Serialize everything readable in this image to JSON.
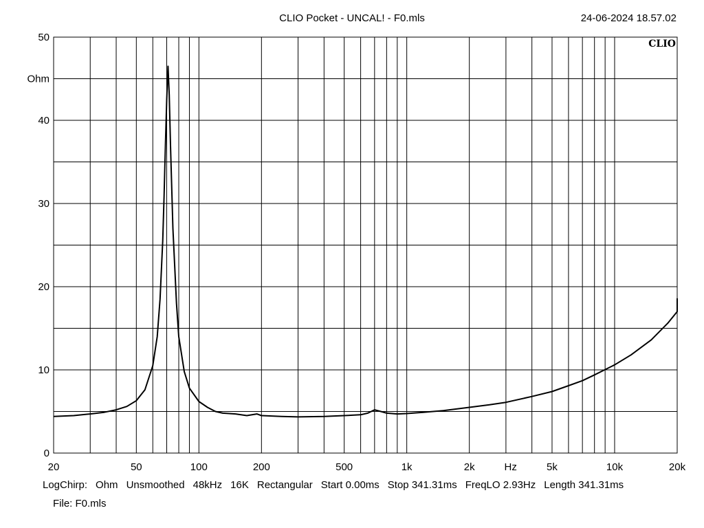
{
  "header": {
    "title": "CLIO Pocket - UNCAL! - F0.mls",
    "timestamp": "24-06-2024 18.57.02"
  },
  "brand": "CLIO",
  "footer": {
    "items": [
      "LogChirp:",
      "Ohm",
      "Unsmoothed",
      "48kHz",
      "16K",
      "Rectangular",
      "Start 0.00ms",
      "Stop 341.31ms",
      "FreqLO 2.93Hz",
      "Length 341.31ms"
    ],
    "file": "File: F0.mls"
  },
  "chart_data": {
    "type": "line",
    "xscale": "log",
    "xlim": [
      20,
      20000
    ],
    "ylim": [
      0,
      50
    ],
    "grid": true,
    "ylabel": "Ohm",
    "xlabel": "Hz",
    "x_ticks": [
      {
        "value": 20,
        "label": "20"
      },
      {
        "value": 50,
        "label": "50"
      },
      {
        "value": 100,
        "label": "100"
      },
      {
        "value": 200,
        "label": "200"
      },
      {
        "value": 500,
        "label": "500"
      },
      {
        "value": 1000,
        "label": "1k"
      },
      {
        "value": 2000,
        "label": "2k"
      },
      {
        "value": 5000,
        "label": "5k"
      },
      {
        "value": 10000,
        "label": "10k"
      },
      {
        "value": 20000,
        "label": "20k"
      }
    ],
    "y_ticks": [
      {
        "value": 0,
        "label": "0"
      },
      {
        "value": 10,
        "label": "10"
      },
      {
        "value": 20,
        "label": "20"
      },
      {
        "value": 30,
        "label": "30"
      },
      {
        "value": 40,
        "label": "40"
      },
      {
        "value": 50,
        "label": "50"
      }
    ],
    "series": [
      {
        "color": "#000000",
        "x": [
          20,
          25,
          30,
          35,
          40,
          45,
          50,
          55,
          60,
          63,
          65,
          67,
          68,
          69,
          70,
          71,
          72,
          73,
          75,
          78,
          80,
          85,
          90,
          100,
          110,
          120,
          130,
          150,
          170,
          190,
          200,
          250,
          300,
          400,
          500,
          600,
          650,
          700,
          750,
          800,
          900,
          1000,
          1200,
          1500,
          2000,
          2500,
          3000,
          4000,
          5000,
          6000,
          7000,
          8000,
          10000,
          12000,
          15000,
          18000,
          20000,
          21000
        ],
        "y": [
          4.4,
          4.5,
          4.7,
          4.9,
          5.2,
          5.6,
          6.3,
          7.6,
          10.5,
          14.0,
          18.5,
          25.5,
          31.0,
          37.0,
          42.5,
          46.5,
          43.0,
          37.0,
          27.0,
          18.0,
          14.0,
          9.8,
          7.8,
          6.2,
          5.5,
          5.0,
          4.8,
          4.7,
          4.5,
          4.7,
          4.5,
          4.4,
          4.35,
          4.4,
          4.5,
          4.6,
          4.8,
          5.2,
          5.0,
          4.8,
          4.7,
          4.75,
          4.9,
          5.1,
          5.5,
          5.8,
          6.1,
          6.8,
          7.4,
          8.1,
          8.7,
          9.4,
          10.6,
          11.8,
          13.6,
          15.6,
          17.0,
          18.6
        ]
      }
    ]
  }
}
